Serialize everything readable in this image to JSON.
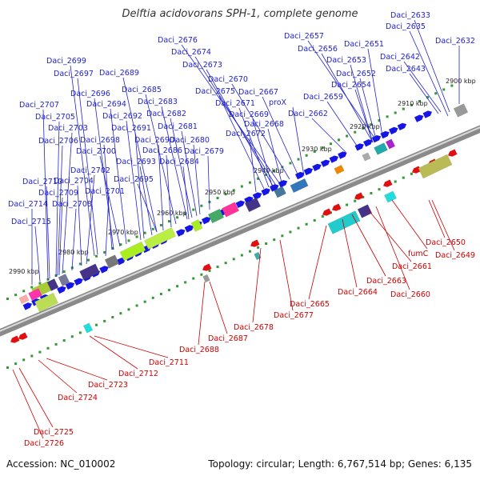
{
  "title": "Delftia acidovorans SPH-1, complete genome",
  "footer": {
    "accession": "Accession: NC_010002",
    "stats": "Topology: circular; Length: 6,767,514 bp; Genes: 6,135"
  },
  "colors": {
    "top_label": "#2222cc",
    "bottom_label": "#cc0000",
    "forward_gene": "#1515e6",
    "reverse_gene": "#e01010",
    "tick": "#339933",
    "backbone": "#8a8a8a"
  },
  "ticks": [
    "2900 kbp",
    "2910 kbp",
    "2920 kbp",
    "2930 kbp",
    "2940 kbp",
    "2950 kbp",
    "2960 kbp",
    "2970 kbp",
    "2980 kbp",
    "2990 kbp"
  ],
  "top_labels": [
    "Daci_2633",
    "Daci_2635",
    "Daci_2632",
    "Daci_2657",
    "Daci_2651",
    "Daci_2656",
    "Daci_2642",
    "Daci_2653",
    "Daci_2643",
    "Daci_2652",
    "Daci_2654",
    "Daci_2659",
    "Daci_2662",
    "Daci_2676",
    "Daci_2674",
    "Daci_2673",
    "Daci_2670",
    "Daci_2675",
    "Daci_2667",
    "proX",
    "Daci_2671",
    "Daci_2669",
    "Daci_2668",
    "Daci_2672",
    "Daci_2699",
    "Daci_2697",
    "Daci_2689",
    "Daci_2696",
    "Daci_2685",
    "Daci_2683",
    "Daci_2694",
    "Daci_2682",
    "Daci_2692",
    "Daci_2681",
    "Daci_2691",
    "Daci_2698",
    "Daci_2690",
    "Daci_2680",
    "Daci_2700",
    "Daci_2686",
    "Daci_2679",
    "Daci_2693",
    "Daci_2684",
    "Daci_2707",
    "Daci_2705",
    "Daci_2703",
    "Daci_2706",
    "Daci_2702",
    "Daci_2695",
    "Daci_2710",
    "Daci_2704",
    "Daci_2709",
    "Daci_2701",
    "Daci_2714",
    "Daci_2708",
    "Daci_2715"
  ],
  "bottom_labels": [
    "Daci_2650",
    "Daci_2649",
    "fumC",
    "Daci_2661",
    "Daci_2660",
    "Daci_2663",
    "Daci_2664",
    "Daci_2665",
    "Daci_2677",
    "Daci_2678",
    "Daci_2687",
    "Daci_2688",
    "Daci_2711",
    "Daci_2712",
    "Daci_2723",
    "Daci_2724",
    "Daci_2725",
    "Daci_2726"
  ]
}
